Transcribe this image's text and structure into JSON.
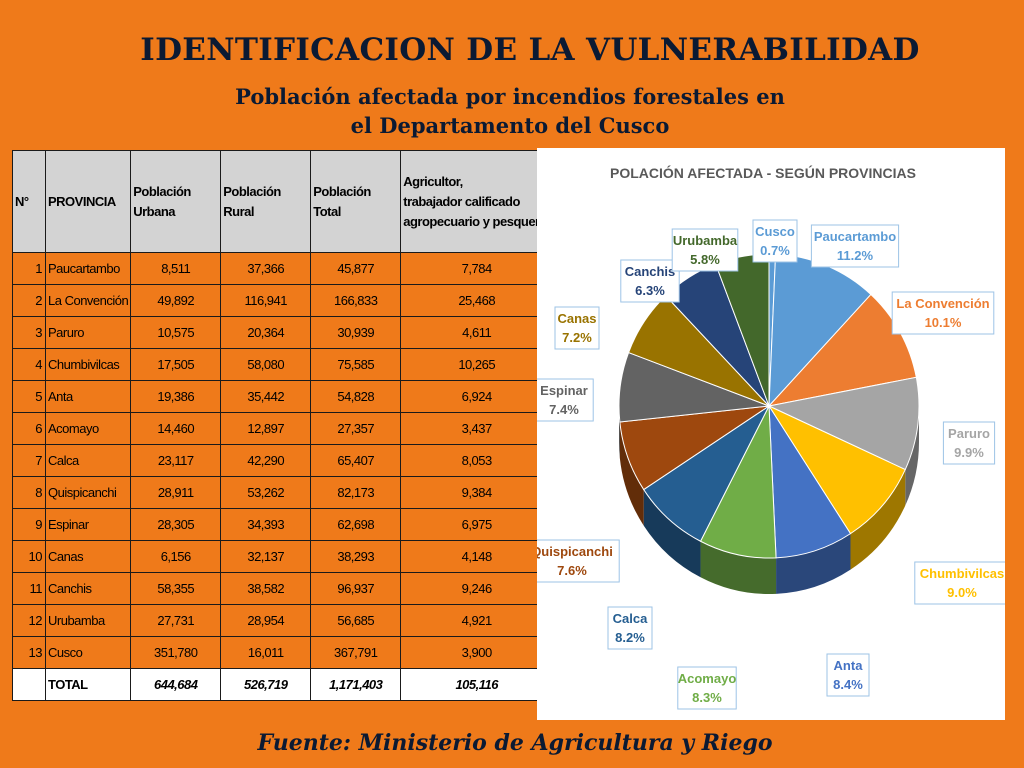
{
  "title": "IDENTIFICACION DE LA VULNERABILIDAD",
  "subtitle_line1": "Población afectada por incendios forestales en",
  "subtitle_line2": "el Departamento del Cusco",
  "source": "Fuente: Ministerio de Agricultura y Riego",
  "table": {
    "headers": {
      "n": "N°",
      "provincia": "PROVINCIA",
      "urbana_1": "Población",
      "urbana_2": "Urbana",
      "rural_1": "Población",
      "rural_2": "Rural",
      "total_1": "Población",
      "total_2": "Total",
      "agri_1": "Agricultor,",
      "agri_2": "trabajador calificado",
      "agri_3": "agropecuario y pesquero."
    },
    "rows": [
      {
        "n": "1",
        "provincia": "Paucartambo",
        "urbana": "8,511",
        "rural": "37,366",
        "total": "45,877",
        "agri": "7,784"
      },
      {
        "n": "2",
        "provincia": "La Convención",
        "urbana": "49,892",
        "rural": "116,941",
        "total": "166,833",
        "agri": "25,468"
      },
      {
        "n": "3",
        "provincia": "Paruro",
        "urbana": "10,575",
        "rural": "20,364",
        "total": "30,939",
        "agri": "4,611"
      },
      {
        "n": "4",
        "provincia": "Chumbivilcas",
        "urbana": "17,505",
        "rural": "58,080",
        "total": "75,585",
        "agri": "10,265"
      },
      {
        "n": "5",
        "provincia": "Anta",
        "urbana": "19,386",
        "rural": "35,442",
        "total": "54,828",
        "agri": "6,924"
      },
      {
        "n": "6",
        "provincia": "Acomayo",
        "urbana": "14,460",
        "rural": "12,897",
        "total": "27,357",
        "agri": "3,437"
      },
      {
        "n": "7",
        "provincia": "Calca",
        "urbana": "23,117",
        "rural": "42,290",
        "total": "65,407",
        "agri": "8,053"
      },
      {
        "n": "8",
        "provincia": "Quispicanchi",
        "urbana": "28,911",
        "rural": "53,262",
        "total": "82,173",
        "agri": "9,384"
      },
      {
        "n": "9",
        "provincia": "Espinar",
        "urbana": "28,305",
        "rural": "34,393",
        "total": "62,698",
        "agri": "6,975"
      },
      {
        "n": "10",
        "provincia": "Canas",
        "urbana": "6,156",
        "rural": "32,137",
        "total": "38,293",
        "agri": "4,148"
      },
      {
        "n": "11",
        "provincia": "Canchis",
        "urbana": "58,355",
        "rural": "38,582",
        "total": "96,937",
        "agri": "9,246"
      },
      {
        "n": "12",
        "provincia": "Urubamba",
        "urbana": "27,731",
        "rural": "28,954",
        "total": "56,685",
        "agri": "4,921"
      },
      {
        "n": "13",
        "provincia": "Cusco",
        "urbana": "351,780",
        "rural": "16,011",
        "total": "367,791",
        "agri": "3,900"
      }
    ],
    "total": {
      "label": "TOTAL",
      "urbana": "644,684",
      "rural": "526,719",
      "total": "1,171,403",
      "agri": "105,116"
    }
  },
  "chart_data": {
    "type": "pie",
    "title": "POLACIÓN AFECTADA - SEGÚN PROVINCIAS",
    "slices": [
      {
        "label": "Cusco",
        "pct_label": "0.7%",
        "value": 0.7,
        "color": "#5b9bd5",
        "text_color": "#5b9bd5"
      },
      {
        "label": "Paucartambo",
        "pct_label": "11.2%",
        "value": 11.2,
        "color": "#5b9bd5",
        "text_color": "#5b9bd5"
      },
      {
        "label": "La Convención",
        "pct_label": "10.1%",
        "value": 10.1,
        "color": "#ed7d31",
        "text_color": "#ed7d31"
      },
      {
        "label": "Paruro",
        "pct_label": "9.9%",
        "value": 9.9,
        "color": "#a5a5a5",
        "text_color": "#a5a5a5"
      },
      {
        "label": "Chumbivilcas",
        "pct_label": "9.0%",
        "value": 9.0,
        "color": "#ffc000",
        "text_color": "#ffc000"
      },
      {
        "label": "Anta",
        "pct_label": "8.4%",
        "value": 8.4,
        "color": "#4472c4",
        "text_color": "#4472c4"
      },
      {
        "label": "Acomayo",
        "pct_label": "8.3%",
        "value": 8.3,
        "color": "#70ad47",
        "text_color": "#70ad47"
      },
      {
        "label": "Calca",
        "pct_label": "8.2%",
        "value": 8.2,
        "color": "#255e91",
        "text_color": "#255e91"
      },
      {
        "label": "Quispicanchi",
        "pct_label": "7.6%",
        "value": 7.6,
        "color": "#9e480e",
        "text_color": "#9e480e"
      },
      {
        "label": "Espinar",
        "pct_label": "7.4%",
        "value": 7.4,
        "color": "#636363",
        "text_color": "#636363"
      },
      {
        "label": "Canas",
        "pct_label": "7.2%",
        "value": 7.2,
        "color": "#997300",
        "text_color": "#997300"
      },
      {
        "label": "Canchis",
        "pct_label": "6.3%",
        "value": 6.3,
        "color": "#264478",
        "text_color": "#264478"
      },
      {
        "label": "Urubamba",
        "pct_label": "5.8%",
        "value": 5.8,
        "color": "#43682b",
        "text_color": "#43682b"
      }
    ]
  }
}
